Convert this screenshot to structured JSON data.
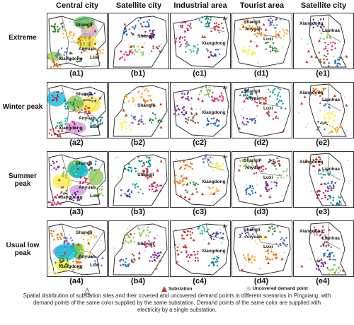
{
  "columns": [
    "Central city",
    "Satellite city",
    "Industrial area",
    "Tourist area",
    "Satellite city"
  ],
  "rows": [
    {
      "name": "Extreme",
      "labels": [
        "(a1)",
        "(b1)",
        "(c1)",
        "(d1)",
        "(e1)"
      ]
    },
    {
      "name": "Winter peak",
      "labels": [
        "(a2)",
        "(b2)",
        "(c2)",
        "(d2)",
        "(e2)"
      ]
    },
    {
      "name": "Summer peak",
      "labels": [
        "(a3)",
        "(b3)",
        "(c3)",
        "(d3)",
        "(e3)"
      ]
    },
    {
      "name": "Usual low peak",
      "labels": [
        "(a4)",
        "(b4)",
        "(c4)",
        "(d4)",
        "(e4)"
      ]
    }
  ],
  "place_labels": {
    "a": [
      "Shangli",
      "Anyuan",
      "Xiangdong",
      "Luxi"
    ],
    "b": [
      "Shangli"
    ],
    "c": [
      "Xiangdong"
    ],
    "d": [
      "Shangli",
      "Anyuan",
      "Luxi"
    ],
    "e": [
      "Xiangdong",
      "Lianhua"
    ],
    "c_corner": "Ar"
  },
  "legend": {
    "substation": "Substation",
    "uncovered": "Uncovered demand point"
  },
  "caption": "Spatial distribution of substation sites and their covered and uncovered demand points in different scenarios in Pingxiang, with demand points of the same color supplied by the same substation. Demand points of the same color are supplied with electricity by a single substation.",
  "colors": {
    "substation": "#c0392b",
    "uncovered": "#cccccc",
    "palette": [
      "#2e7d32",
      "#1565c0",
      "#c2185b",
      "#f9a825",
      "#6a1b9a",
      "#00838f",
      "#ef6c00",
      "#8bc34a",
      "#d32f2f",
      "#5c6bc0",
      "#e91e63",
      "#26a69a",
      "#ffeb3b",
      "#795548",
      "#3949ab"
    ]
  }
}
